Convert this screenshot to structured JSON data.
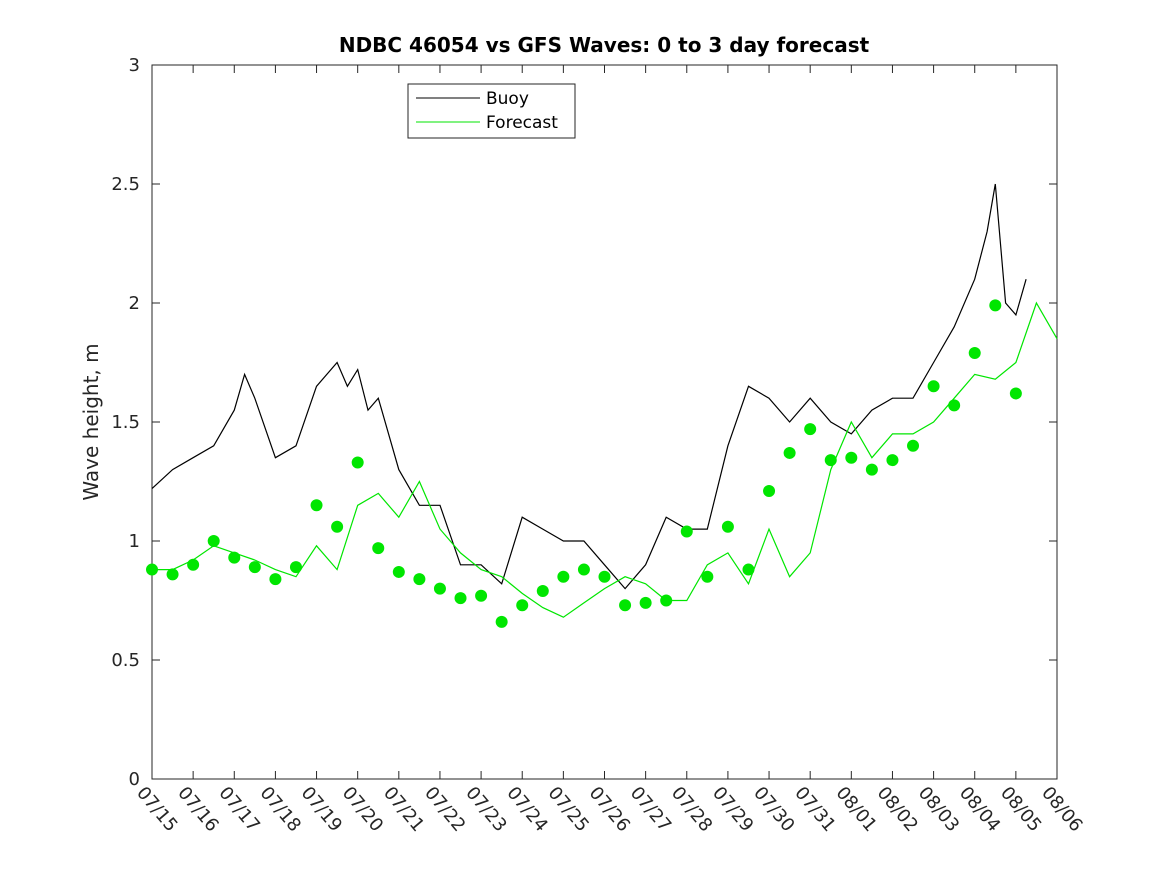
{
  "chart_data": {
    "type": "line",
    "title": "NDBC 46054 vs GFS Waves: 0 to 3 day forecast",
    "xlabel": "",
    "ylabel": "Wave height, m",
    "ylim": [
      0,
      3
    ],
    "xlim": [
      "07/15",
      "08/06"
    ],
    "x_tick_labels": [
      "07/15",
      "07/16",
      "07/17",
      "07/18",
      "07/19",
      "07/20",
      "07/21",
      "07/22",
      "07/23",
      "07/24",
      "07/25",
      "07/26",
      "07/27",
      "07/28",
      "07/29",
      "07/30",
      "07/31",
      "08/01",
      "08/02",
      "08/03",
      "08/04",
      "08/05",
      "08/06"
    ],
    "y_tick_labels": [
      "0",
      "0.5",
      "1",
      "1.5",
      "2",
      "2.5",
      "3"
    ],
    "y_ticks": [
      0,
      0.5,
      1,
      1.5,
      2,
      2.5,
      3
    ],
    "grid": false,
    "legend_position": "top-left",
    "colors": {
      "buoy": "#000000",
      "forecast": "#00e600",
      "markers": "#00e600"
    },
    "series": [
      {
        "name": "Buoy",
        "style": "line",
        "x_days": [
          0,
          0.5,
          1,
          1.5,
          2,
          2.25,
          2.5,
          3,
          3.5,
          4,
          4.5,
          4.75,
          5,
          5.25,
          5.5,
          6,
          6.5,
          7,
          7.5,
          8,
          8.5,
          9,
          9.5,
          10,
          10.5,
          11,
          11.5,
          12,
          12.5,
          13,
          13.5,
          14,
          14.5,
          15,
          15.5,
          16,
          16.5,
          17,
          17.5,
          18,
          18.5,
          19,
          19.5,
          20,
          20.3,
          20.5,
          20.75,
          21,
          21.25
        ],
        "values": [
          1.22,
          1.3,
          1.35,
          1.4,
          1.55,
          1.7,
          1.6,
          1.35,
          1.4,
          1.65,
          1.75,
          1.65,
          1.72,
          1.55,
          1.6,
          1.3,
          1.15,
          1.15,
          0.9,
          0.9,
          0.82,
          1.1,
          1.05,
          1.0,
          1.0,
          0.9,
          0.8,
          0.9,
          1.1,
          1.05,
          1.05,
          1.4,
          1.65,
          1.6,
          1.5,
          1.6,
          1.5,
          1.45,
          1.55,
          1.6,
          1.6,
          1.75,
          1.9,
          2.1,
          2.3,
          2.5,
          2.0,
          1.95,
          2.1
        ]
      },
      {
        "name": "Forecast",
        "style": "line",
        "x_days": [
          0,
          0.5,
          1,
          1.5,
          2,
          2.5,
          3,
          3.5,
          4,
          4.5,
          5,
          5.5,
          6,
          6.5,
          7,
          7.5,
          8,
          8.5,
          9,
          9.5,
          10,
          10.5,
          11,
          11.5,
          12,
          12.5,
          13,
          13.5,
          14,
          14.5,
          15,
          15.5,
          16,
          16.5,
          17,
          17.5,
          18,
          18.5,
          19,
          19.5,
          20,
          20.5,
          21,
          21.5,
          22
        ],
        "values": [
          0.88,
          0.88,
          0.92,
          0.98,
          0.95,
          0.92,
          0.88,
          0.85,
          0.98,
          0.88,
          1.15,
          1.2,
          1.1,
          1.25,
          1.05,
          0.95,
          0.88,
          0.85,
          0.78,
          0.72,
          0.68,
          0.74,
          0.8,
          0.85,
          0.82,
          0.75,
          0.75,
          0.9,
          0.95,
          0.82,
          1.05,
          0.85,
          0.95,
          1.3,
          1.5,
          1.35,
          1.45,
          1.45,
          1.5,
          1.6,
          1.7,
          1.68,
          1.75,
          2.0,
          1.85
        ]
      },
      {
        "name": "",
        "style": "markers",
        "x_days": [
          0,
          0.5,
          1,
          1.5,
          2,
          2.5,
          3,
          3.5,
          4,
          4.5,
          5,
          5.5,
          6,
          6.5,
          7,
          7.5,
          8,
          8.5,
          9,
          9.5,
          10,
          10.5,
          11,
          11.5,
          12,
          12.5,
          13,
          13.5,
          14,
          14.5,
          15,
          15.5,
          16,
          16.5,
          17,
          17.5,
          18,
          18.5,
          19,
          19.5,
          20,
          20.5,
          21
        ],
        "values": [
          0.88,
          0.86,
          0.9,
          1.0,
          0.93,
          0.89,
          0.84,
          0.89,
          1.15,
          1.06,
          1.33,
          0.97,
          0.87,
          0.84,
          0.8,
          0.76,
          0.77,
          0.66,
          0.73,
          0.79,
          0.85,
          0.88,
          0.85,
          0.73,
          0.74,
          0.75,
          1.04,
          0.85,
          1.06,
          0.88,
          1.21,
          1.37,
          1.47,
          1.34,
          1.35,
          1.3,
          1.34,
          1.4,
          1.65,
          1.57,
          1.79,
          1.99,
          1.62
        ]
      }
    ]
  }
}
